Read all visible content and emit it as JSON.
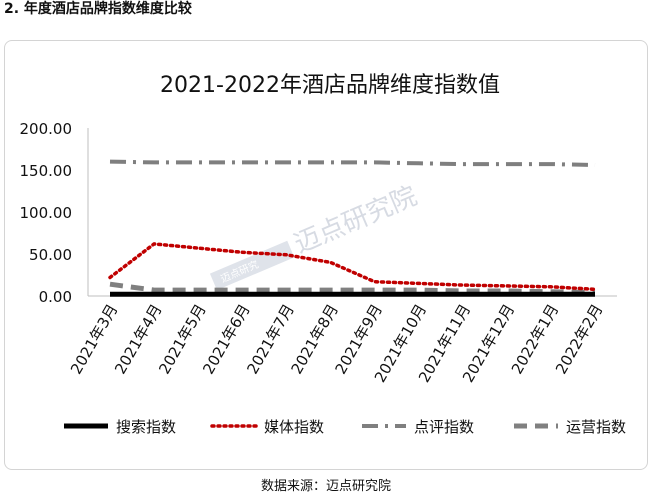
{
  "page": {
    "heading": "2. 年度酒店品牌指数维度比较",
    "source": "数据来源：迈点研究院"
  },
  "watermark": {
    "text": "迈点研究院",
    "logo_text": "迈点研究"
  },
  "chart_data": {
    "type": "line",
    "title": "2021-2022年酒店品牌维度指数值",
    "xlabel": "",
    "ylabel": "",
    "categories": [
      "2021年3月",
      "2021年4月",
      "2021年5月",
      "2021年6月",
      "2021年7月",
      "2021年8月",
      "2021年9月",
      "2021年10月",
      "2021年11月",
      "2021年12月",
      "2022年1月",
      "2022年2月"
    ],
    "y_ticks": [
      "200.00",
      "150.00",
      "100.00",
      "50.00",
      "0.00"
    ],
    "ylim": [
      0,
      200
    ],
    "grid": false,
    "legend_position": "bottom",
    "series": [
      {
        "name": "搜索指数",
        "color": "#000000",
        "style": "solid",
        "values": [
          2,
          2,
          2,
          2,
          2,
          2,
          2,
          2,
          2,
          2,
          2,
          2
        ]
      },
      {
        "name": "媒体指数",
        "color": "#c00000",
        "style": "dotted",
        "values": [
          22,
          62,
          57,
          52,
          49,
          40,
          17,
          15,
          13,
          12,
          11,
          8
        ]
      },
      {
        "name": "点评指数",
        "color": "#7f7f7f",
        "style": "dashdot",
        "values": [
          160,
          159,
          159,
          159,
          159,
          159,
          159,
          158,
          157,
          157,
          157,
          156
        ]
      },
      {
        "name": "运营指数",
        "color": "#808080",
        "style": "dashed",
        "values": [
          14,
          7,
          7,
          7,
          7,
          7,
          7,
          7,
          6,
          6,
          5,
          4
        ]
      }
    ]
  }
}
